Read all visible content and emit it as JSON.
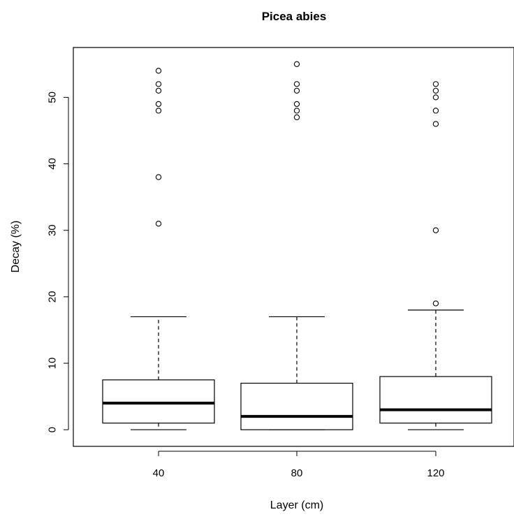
{
  "chart_data": {
    "type": "boxplot",
    "title": "Picea abies",
    "xlabel": "Layer (cm)",
    "ylabel": "Decay (%)",
    "categories": [
      "40",
      "80",
      "120"
    ],
    "ylim": [
      -2.5,
      57.5
    ],
    "yticks": [
      "0",
      "10",
      "20",
      "30",
      "40",
      "50"
    ],
    "grid": false,
    "legend": "none",
    "boxes": [
      {
        "category": "40",
        "whisker_low": 0,
        "q1": 1,
        "median": 4,
        "q3": 7.5,
        "whisker_high": 17,
        "outliers": [
          31,
          38,
          48,
          49,
          51,
          52,
          54
        ]
      },
      {
        "category": "80",
        "whisker_low": 0,
        "q1": 0,
        "median": 2,
        "q3": 7,
        "whisker_high": 17,
        "outliers": [
          47,
          48,
          49,
          51,
          52,
          55
        ]
      },
      {
        "category": "120",
        "whisker_low": 0,
        "q1": 1,
        "median": 3,
        "q3": 8,
        "whisker_high": 18,
        "outliers": [
          19,
          30,
          46,
          48,
          50,
          51,
          52
        ]
      }
    ]
  }
}
